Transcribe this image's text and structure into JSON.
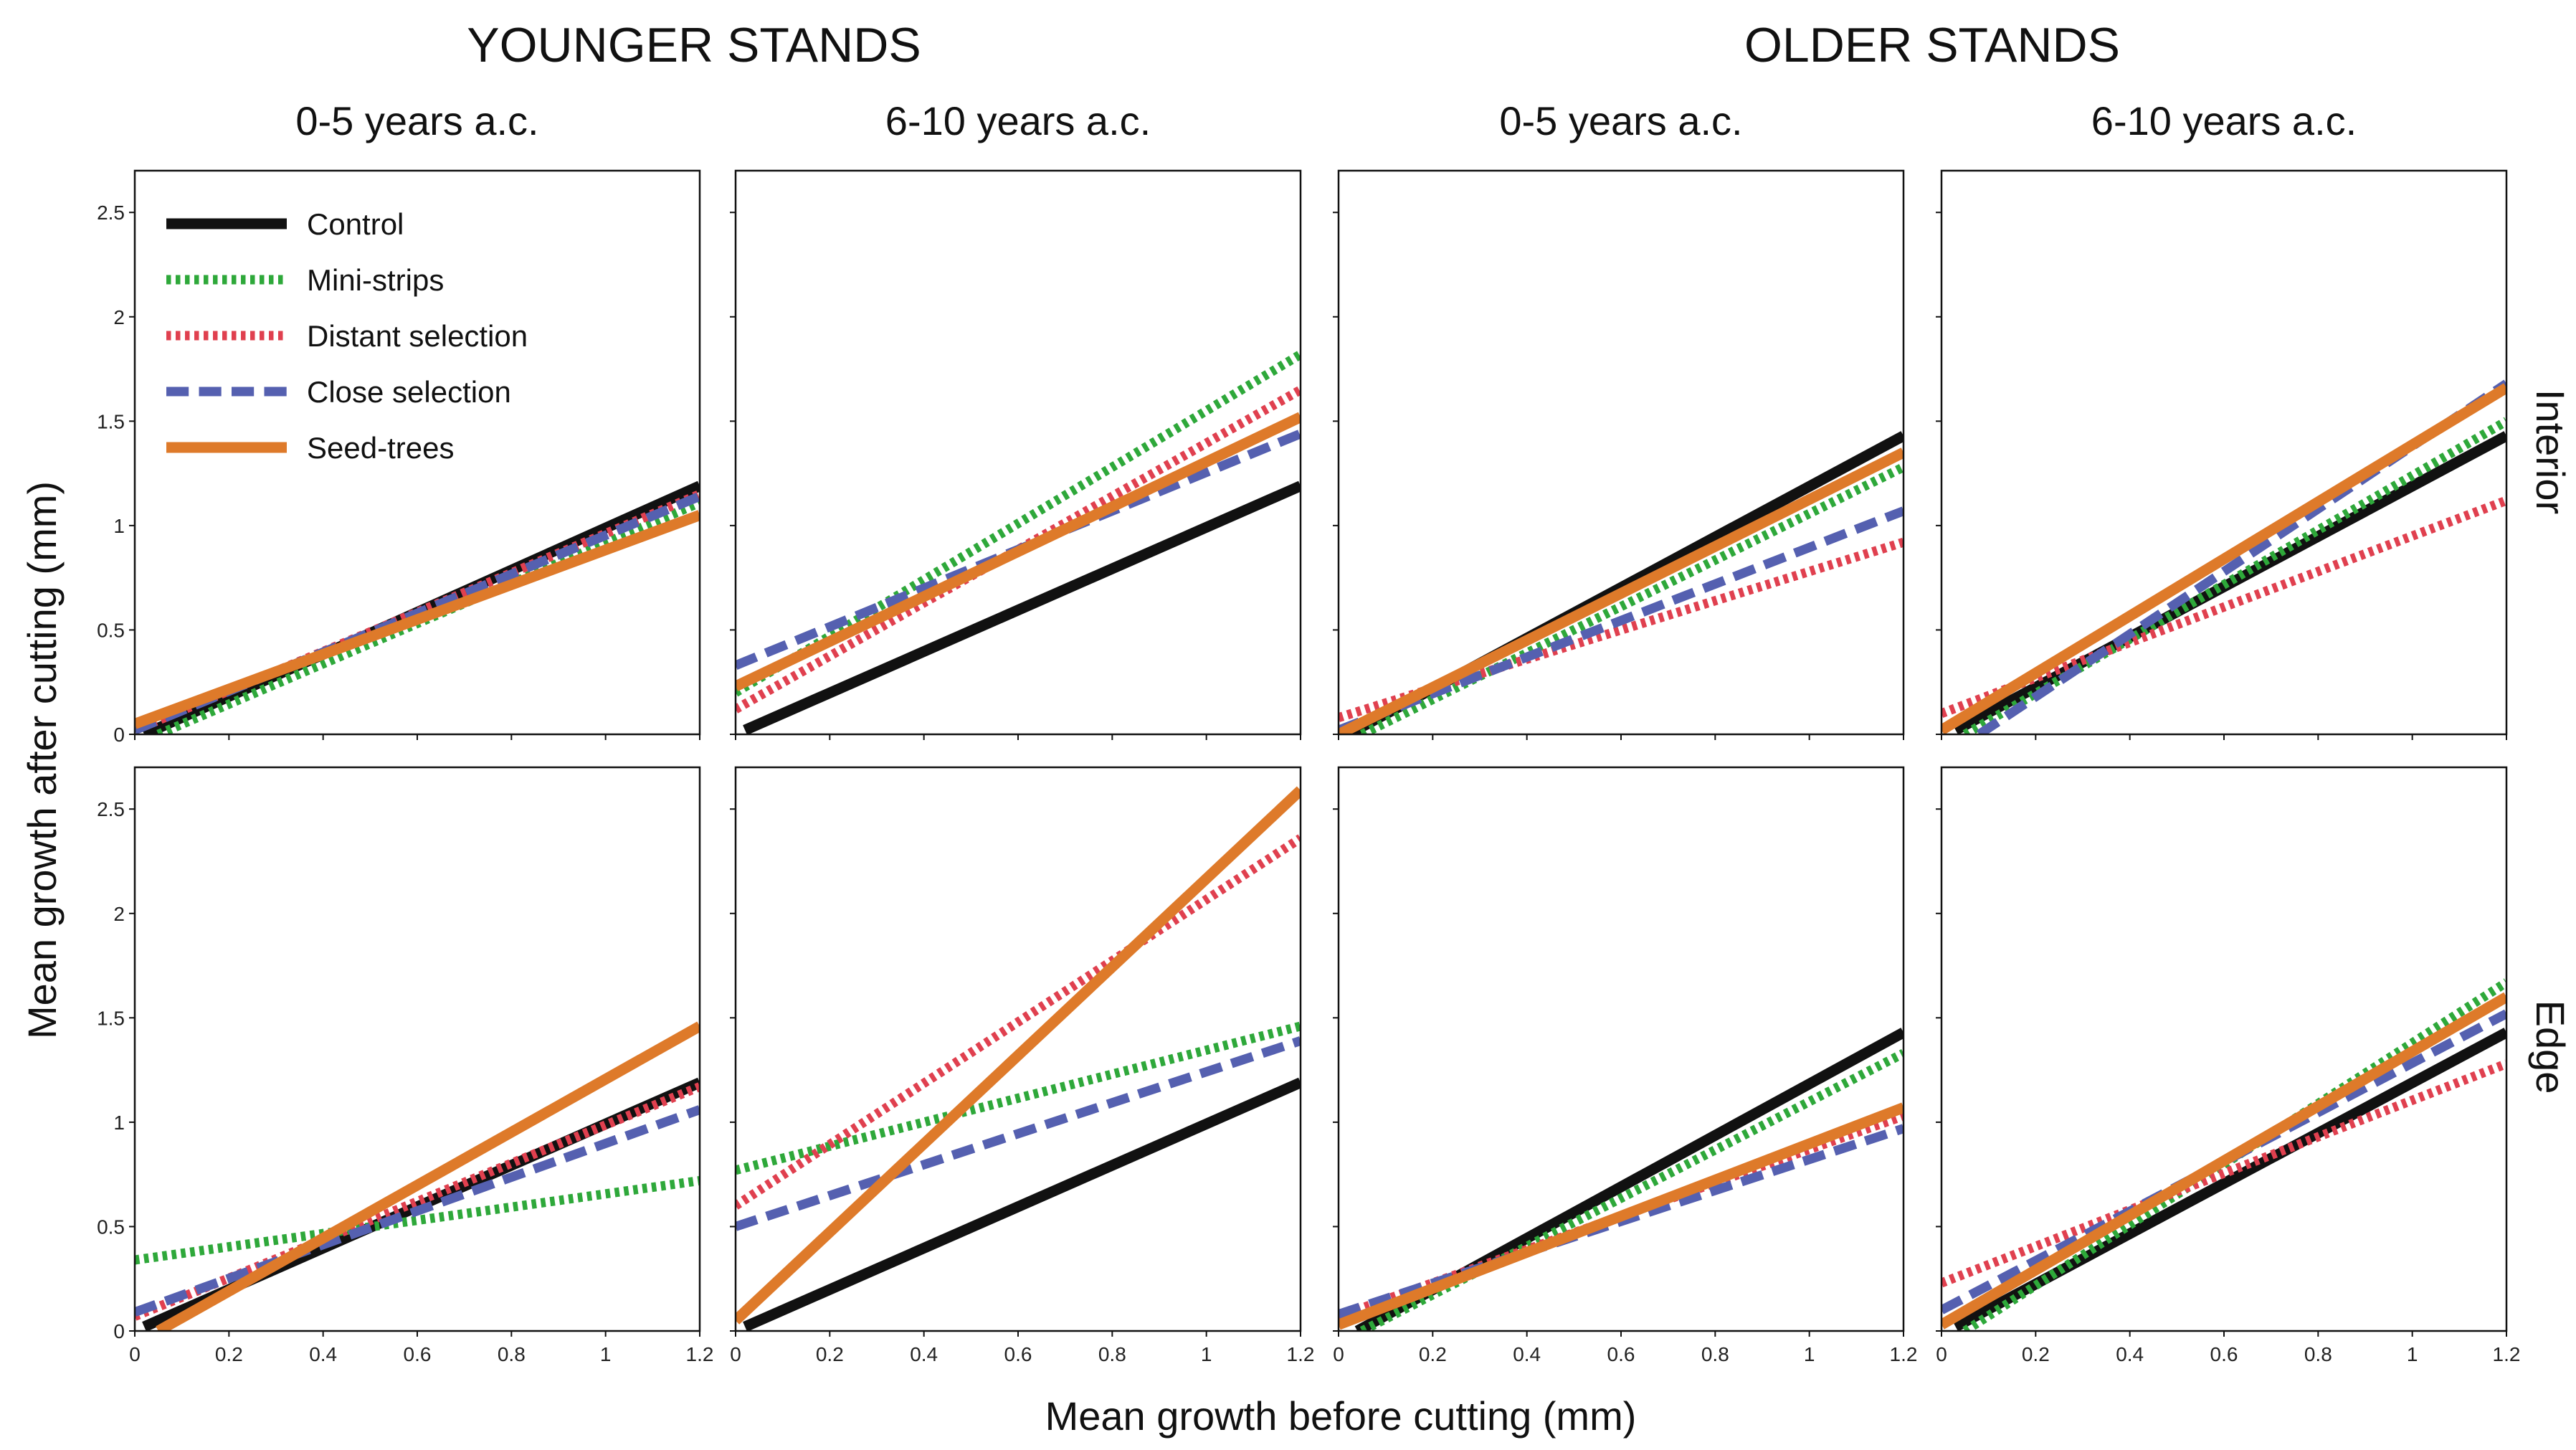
{
  "figure": {
    "group_titles": [
      "YOUNGER STANDS",
      "OLDER STANDS"
    ],
    "row_labels": [
      "Interior",
      "Edge"
    ],
    "xlabel": "Mean growth before cutting (mm)",
    "ylabel": "Mean growth after cutting (mm)"
  },
  "legend": {
    "items": [
      {
        "name": "Control",
        "color": "#111111",
        "style": "solid"
      },
      {
        "name": "Mini-strips",
        "color": "#2ea83a",
        "style": "dotted"
      },
      {
        "name": "Distant selection",
        "color": "#e0404f",
        "style": "dotted"
      },
      {
        "name": "Close selection",
        "color": "#5560b0",
        "style": "dashed"
      },
      {
        "name": "Seed-trees",
        "color": "#de7a2a",
        "style": "solid"
      }
    ]
  },
  "chart_data": {
    "type": "line",
    "x_ticks": [
      "0",
      "0.2",
      "0.4",
      "0.6",
      "0.8",
      "1",
      "1.2"
    ],
    "y_ticks": [
      "0",
      "0.5",
      "1",
      "1.5",
      "2",
      "2.5"
    ],
    "xlim": [
      0,
      1.2
    ],
    "ylim": [
      0,
      2.7
    ],
    "panels": [
      {
        "stand": "YOUNGER STANDS",
        "title": "0-5 years a.c.",
        "position": "Interior",
        "series": [
          {
            "name": "Control",
            "x": [
              0.02,
              1.2
            ],
            "y": [
              0.0,
              1.19
            ]
          },
          {
            "name": "Mini-strips",
            "x": [
              0.05,
              1.2
            ],
            "y": [
              0.0,
              1.11
            ]
          },
          {
            "name": "Distant selection",
            "x": [
              0.0,
              1.2
            ],
            "y": [
              0.02,
              1.15
            ]
          },
          {
            "name": "Close selection",
            "x": [
              0.0,
              1.2
            ],
            "y": [
              0.02,
              1.14
            ]
          },
          {
            "name": "Seed-trees",
            "x": [
              0.0,
              1.2
            ],
            "y": [
              0.05,
              1.05
            ]
          }
        ]
      },
      {
        "stand": "YOUNGER STANDS",
        "title": "6-10 years a.c.",
        "position": "Interior",
        "series": [
          {
            "name": "Control",
            "x": [
              0.02,
              1.2
            ],
            "y": [
              0.02,
              1.19
            ]
          },
          {
            "name": "Mini-strips",
            "x": [
              0.0,
              1.2
            ],
            "y": [
              0.2,
              1.82
            ]
          },
          {
            "name": "Distant selection",
            "x": [
              0.0,
              1.2
            ],
            "y": [
              0.12,
              1.65
            ]
          },
          {
            "name": "Close selection",
            "x": [
              0.0,
              1.2
            ],
            "y": [
              0.33,
              1.44
            ]
          },
          {
            "name": "Seed-trees",
            "x": [
              0.0,
              1.2
            ],
            "y": [
              0.23,
              1.52
            ]
          }
        ]
      },
      {
        "stand": "OLDER STANDS",
        "title": "0-5 years a.c.",
        "position": "Interior",
        "series": [
          {
            "name": "Control",
            "x": [
              0.02,
              1.2
            ],
            "y": [
              0.0,
              1.43
            ]
          },
          {
            "name": "Mini-strips",
            "x": [
              0.05,
              1.2
            ],
            "y": [
              0.0,
              1.28
            ]
          },
          {
            "name": "Distant selection",
            "x": [
              0.0,
              1.2
            ],
            "y": [
              0.08,
              0.92
            ]
          },
          {
            "name": "Close selection",
            "x": [
              0.0,
              1.2
            ],
            "y": [
              0.02,
              1.07
            ]
          },
          {
            "name": "Seed-trees",
            "x": [
              0.0,
              1.2
            ],
            "y": [
              0.0,
              1.35
            ]
          }
        ]
      },
      {
        "stand": "OLDER STANDS",
        "title": "6-10 years a.c.",
        "position": "Interior",
        "series": [
          {
            "name": "Control",
            "x": [
              0.03,
              1.2
            ],
            "y": [
              0.02,
              1.43
            ]
          },
          {
            "name": "Mini-strips",
            "x": [
              0.05,
              1.2
            ],
            "y": [
              0.0,
              1.5
            ]
          },
          {
            "name": "Distant selection",
            "x": [
              0.0,
              1.2
            ],
            "y": [
              0.1,
              1.12
            ]
          },
          {
            "name": "Close selection",
            "x": [
              0.08,
              1.2
            ],
            "y": [
              0.0,
              1.68
            ]
          },
          {
            "name": "Seed-trees",
            "x": [
              0.0,
              1.2
            ],
            "y": [
              0.02,
              1.66
            ]
          }
        ]
      },
      {
        "stand": "YOUNGER STANDS",
        "title": "0-5 years a.c.",
        "position": "Edge",
        "series": [
          {
            "name": "Control",
            "x": [
              0.02,
              1.2
            ],
            "y": [
              0.02,
              1.19
            ]
          },
          {
            "name": "Mini-strips",
            "x": [
              0.0,
              1.2
            ],
            "y": [
              0.34,
              0.72
            ]
          },
          {
            "name": "Distant selection",
            "x": [
              0.0,
              1.2
            ],
            "y": [
              0.07,
              1.17
            ]
          },
          {
            "name": "Close selection",
            "x": [
              0.0,
              1.2
            ],
            "y": [
              0.09,
              1.06
            ]
          },
          {
            "name": "Seed-trees",
            "x": [
              0.05,
              1.2
            ],
            "y": [
              0.0,
              1.46
            ]
          }
        ]
      },
      {
        "stand": "YOUNGER STANDS",
        "title": "6-10 years a.c.",
        "position": "Edge",
        "series": [
          {
            "name": "Control",
            "x": [
              0.02,
              1.2
            ],
            "y": [
              0.02,
              1.19
            ]
          },
          {
            "name": "Mini-strips",
            "x": [
              0.0,
              1.2
            ],
            "y": [
              0.77,
              1.46
            ]
          },
          {
            "name": "Distant selection",
            "x": [
              0.0,
              1.2
            ],
            "y": [
              0.6,
              2.36
            ]
          },
          {
            "name": "Close selection",
            "x": [
              0.0,
              1.2
            ],
            "y": [
              0.5,
              1.39
            ]
          },
          {
            "name": "Seed-trees",
            "x": [
              0.0,
              1.2
            ],
            "y": [
              0.05,
              2.59
            ]
          }
        ]
      },
      {
        "stand": "OLDER STANDS",
        "title": "0-5 years a.c.",
        "position": "Edge",
        "series": [
          {
            "name": "Control",
            "x": [
              0.04,
              1.2
            ],
            "y": [
              0.0,
              1.43
            ]
          },
          {
            "name": "Mini-strips",
            "x": [
              0.05,
              1.2
            ],
            "y": [
              0.0,
              1.33
            ]
          },
          {
            "name": "Distant selection",
            "x": [
              0.0,
              1.2
            ],
            "y": [
              0.07,
              1.03
            ]
          },
          {
            "name": "Close selection",
            "x": [
              0.0,
              1.2
            ],
            "y": [
              0.08,
              0.97
            ]
          },
          {
            "name": "Seed-trees",
            "x": [
              0.0,
              1.2
            ],
            "y": [
              0.03,
              1.07
            ]
          }
        ]
      },
      {
        "stand": "OLDER STANDS",
        "title": "6-10 years a.c.",
        "position": "Edge",
        "series": [
          {
            "name": "Control",
            "x": [
              0.03,
              1.2
            ],
            "y": [
              0.02,
              1.43
            ]
          },
          {
            "name": "Mini-strips",
            "x": [
              0.05,
              1.2
            ],
            "y": [
              0.0,
              1.67
            ]
          },
          {
            "name": "Distant selection",
            "x": [
              0.0,
              1.2
            ],
            "y": [
              0.23,
              1.28
            ]
          },
          {
            "name": "Close selection",
            "x": [
              0.0,
              1.2
            ],
            "y": [
              0.1,
              1.52
            ]
          },
          {
            "name": "Seed-trees",
            "x": [
              0.0,
              1.2
            ],
            "y": [
              0.03,
              1.6
            ]
          }
        ]
      }
    ]
  }
}
